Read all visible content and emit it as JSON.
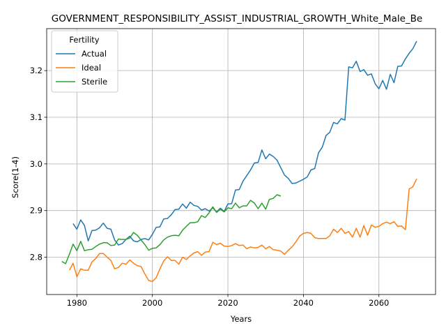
{
  "chart_data": {
    "type": "line",
    "title": "GOVERNMENT_RESPONSIBILITY_ASSIST_INDUSTRIAL_GROWTH_White_Male_Be",
    "xlabel": "Years",
    "ylabel": "Score(1-4)",
    "xlim": [
      1972,
      2075
    ],
    "ylim": [
      2.72,
      3.29
    ],
    "x_ticks": [
      1980,
      2000,
      2020,
      2040,
      2060
    ],
    "y_ticks": [
      2.8,
      2.9,
      3.0,
      3.1,
      3.2
    ],
    "x_tick_labels": [
      "1980",
      "2000",
      "2020",
      "2040",
      "2060"
    ],
    "y_tick_labels": [
      "2.8",
      "2.9",
      "3.0",
      "3.1",
      "3.2"
    ],
    "grid": true,
    "legend": {
      "title": "Fertility",
      "placement": "top-left"
    },
    "series": [
      {
        "name": "Actual",
        "color": "#1f77b4",
        "x": [
          1979,
          1980,
          1981,
          1982,
          1983,
          1984,
          1985,
          1986,
          1987,
          1988,
          1989,
          1990,
          1991,
          1992,
          1993,
          1994,
          1995,
          1996,
          1997,
          1998,
          1999,
          2000,
          2001,
          2002,
          2003,
          2004,
          2005,
          2006,
          2007,
          2008,
          2009,
          2010,
          2011,
          2012,
          2013,
          2014,
          2015,
          2016,
          2017,
          2018,
          2019,
          2020,
          2021,
          2022,
          2023,
          2024,
          2025,
          2026,
          2027,
          2028,
          2029,
          2030,
          2031,
          2032,
          2033,
          2034,
          2035,
          2036,
          2037,
          2038,
          2039,
          2040,
          2041,
          2042,
          2043,
          2044,
          2045,
          2046,
          2047,
          2048,
          2049,
          2050,
          2051,
          2052,
          2053,
          2054,
          2055,
          2056,
          2057,
          2058,
          2059,
          2060,
          2061,
          2062,
          2063,
          2064,
          2065,
          2066,
          2067,
          2068,
          2069,
          2070
        ],
        "y": [
          2.872,
          2.86,
          2.88,
          2.868,
          2.835,
          2.857,
          2.858,
          2.863,
          2.873,
          2.862,
          2.86,
          2.837,
          2.826,
          2.829,
          2.838,
          2.845,
          2.835,
          2.833,
          2.838,
          2.84,
          2.837,
          2.849,
          2.864,
          2.865,
          2.882,
          2.883,
          2.891,
          2.902,
          2.903,
          2.914,
          2.905,
          2.918,
          2.911,
          2.909,
          2.901,
          2.904,
          2.899,
          2.906,
          2.897,
          2.905,
          2.898,
          2.914,
          2.915,
          2.944,
          2.945,
          2.963,
          2.975,
          2.987,
          3.002,
          3.003,
          3.03,
          3.011,
          3.021,
          3.016,
          3.008,
          2.992,
          2.976,
          2.969,
          2.958,
          2.959,
          2.963,
          2.967,
          2.972,
          2.987,
          2.99,
          3.024,
          3.036,
          3.061,
          3.068,
          3.089,
          3.086,
          3.097,
          3.094,
          3.208,
          3.206,
          3.22,
          3.198,
          3.202,
          3.19,
          3.193,
          3.172,
          3.161,
          3.179,
          3.16,
          3.192,
          3.174,
          3.209,
          3.21,
          3.225,
          3.237,
          3.247,
          3.263
        ]
      },
      {
        "name": "Ideal",
        "color": "#ff7f0e",
        "x": [
          1978,
          1979,
          1980,
          1981,
          1982,
          1983,
          1984,
          1985,
          1986,
          1987,
          1988,
          1989,
          1990,
          1991,
          1992,
          1993,
          1994,
          1995,
          1996,
          1997,
          1998,
          1999,
          2000,
          2001,
          2002,
          2003,
          2004,
          2005,
          2006,
          2007,
          2008,
          2009,
          2010,
          2011,
          2012,
          2013,
          2014,
          2015,
          2016,
          2017,
          2018,
          2019,
          2020,
          2021,
          2022,
          2023,
          2024,
          2025,
          2026,
          2027,
          2028,
          2029,
          2030,
          2031,
          2032,
          2033,
          2034,
          2035,
          2036,
          2037,
          2038,
          2039,
          2040,
          2041,
          2042,
          2043,
          2044,
          2045,
          2046,
          2047,
          2048,
          2049,
          2050,
          2051,
          2052,
          2053,
          2054,
          2055,
          2056,
          2057,
          2058,
          2059,
          2060,
          2061,
          2062,
          2063,
          2064,
          2065,
          2066,
          2067,
          2068,
          2069,
          2070
        ],
        "y": [
          2.772,
          2.787,
          2.758,
          2.775,
          2.772,
          2.772,
          2.79,
          2.797,
          2.808,
          2.808,
          2.8,
          2.793,
          2.775,
          2.778,
          2.787,
          2.785,
          2.794,
          2.787,
          2.782,
          2.78,
          2.764,
          2.75,
          2.748,
          2.756,
          2.775,
          2.792,
          2.801,
          2.793,
          2.793,
          2.785,
          2.8,
          2.795,
          2.803,
          2.809,
          2.812,
          2.804,
          2.811,
          2.812,
          2.832,
          2.827,
          2.83,
          2.824,
          2.823,
          2.825,
          2.829,
          2.825,
          2.826,
          2.818,
          2.822,
          2.82,
          2.821,
          2.826,
          2.818,
          2.823,
          2.816,
          2.815,
          2.813,
          2.806,
          2.815,
          2.822,
          2.833,
          2.845,
          2.851,
          2.853,
          2.851,
          2.842,
          2.84,
          2.84,
          2.84,
          2.846,
          2.86,
          2.853,
          2.862,
          2.851,
          2.855,
          2.843,
          2.862,
          2.843,
          2.868,
          2.847,
          2.869,
          2.864,
          2.866,
          2.872,
          2.875,
          2.872,
          2.876,
          2.866,
          2.867,
          2.859,
          2.946,
          2.951,
          2.968
        ]
      },
      {
        "name": "Sterile",
        "color": "#2ca02c",
        "x": [
          1976,
          1977,
          1978,
          1979,
          1980,
          1981,
          1982,
          1983,
          1984,
          1985,
          1986,
          1987,
          1988,
          1989,
          1990,
          1991,
          1992,
          1993,
          1994,
          1995,
          1996,
          1997,
          1998,
          1999,
          2000,
          2001,
          2002,
          2003,
          2004,
          2005,
          2006,
          2007,
          2008,
          2009,
          2010,
          2011,
          2012,
          2013,
          2014,
          2015,
          2016,
          2017,
          2018,
          2019,
          2020,
          2021,
          2022,
          2023,
          2024,
          2025,
          2026,
          2027,
          2028,
          2029,
          2030,
          2031,
          2032,
          2033,
          2034
        ],
        "y": [
          2.791,
          2.786,
          2.806,
          2.828,
          2.814,
          2.834,
          2.814,
          2.816,
          2.817,
          2.823,
          2.828,
          2.831,
          2.831,
          2.825,
          2.826,
          2.839,
          2.838,
          2.838,
          2.841,
          2.853,
          2.847,
          2.837,
          2.827,
          2.815,
          2.819,
          2.82,
          2.827,
          2.837,
          2.843,
          2.846,
          2.847,
          2.846,
          2.858,
          2.866,
          2.874,
          2.874,
          2.876,
          2.889,
          2.885,
          2.895,
          2.908,
          2.896,
          2.903,
          2.897,
          2.906,
          2.904,
          2.916,
          2.906,
          2.91,
          2.91,
          2.922,
          2.916,
          2.904,
          2.916,
          2.903,
          2.924,
          2.926,
          2.934,
          2.931
        ]
      }
    ]
  }
}
